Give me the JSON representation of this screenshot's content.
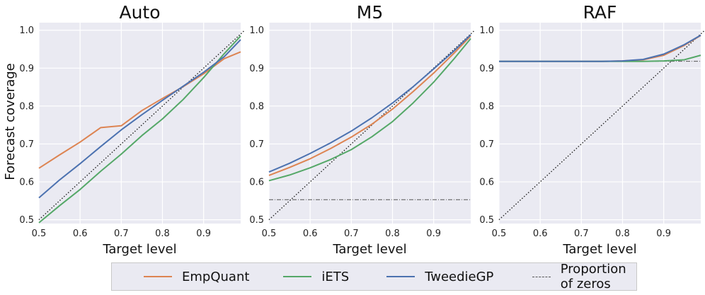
{
  "chart_data": {
    "type": "line",
    "ylabel": "Forecast coverage",
    "xlabel": "Target level",
    "xlim": [
      0.5,
      0.99
    ],
    "ylim": [
      0.49,
      1.02
    ],
    "xticks": [
      "0.5",
      "0.6",
      "0.7",
      "0.8",
      "0.9"
    ],
    "yticks": [
      "0.5",
      "0.6",
      "0.7",
      "0.8",
      "0.9",
      "1.0"
    ],
    "colors": {
      "EmpQuant": "#dd8452",
      "iETS": "#55a868",
      "TweedieGP": "#4c72b0",
      "Proportion of zeros": "#555555",
      "diagonal": "#222222"
    },
    "legend": [
      {
        "name": "EmpQuant",
        "style": "solid"
      },
      {
        "name": "iETS",
        "style": "solid"
      },
      {
        "name": "TweedieGP",
        "style": "solid"
      },
      {
        "name": "Proportion of zeros",
        "style": "dashdot"
      }
    ],
    "panels": [
      {
        "title": "Auto",
        "x": [
          0.5,
          0.55,
          0.6,
          0.65,
          0.7,
          0.75,
          0.8,
          0.85,
          0.9,
          0.95,
          0.99
        ],
        "series": [
          {
            "name": "EmpQuant",
            "values": [
              0.636,
              0.671,
              0.705,
              0.743,
              0.748,
              0.788,
              0.82,
              0.851,
              0.885,
              0.925,
              0.943
            ]
          },
          {
            "name": "iETS",
            "values": [
              0.492,
              0.537,
              0.58,
              0.628,
              0.673,
              0.722,
              0.766,
              0.817,
              0.875,
              0.938,
              0.985
            ]
          },
          {
            "name": "TweedieGP",
            "values": [
              0.558,
              0.605,
              0.648,
              0.693,
              0.737,
              0.777,
              0.815,
              0.852,
              0.889,
              0.93,
              0.975
            ]
          }
        ],
        "zero_proportion": null
      },
      {
        "title": "M5",
        "x": [
          0.5,
          0.55,
          0.6,
          0.65,
          0.7,
          0.75,
          0.8,
          0.85,
          0.9,
          0.95,
          0.99
        ],
        "series": [
          {
            "name": "EmpQuant",
            "values": [
              0.617,
              0.638,
              0.661,
              0.688,
              0.718,
              0.752,
              0.792,
              0.838,
              0.887,
              0.94,
              0.985
            ]
          },
          {
            "name": "iETS",
            "values": [
              0.603,
              0.618,
              0.637,
              0.659,
              0.685,
              0.719,
              0.759,
              0.808,
              0.863,
              0.925,
              0.978
            ]
          },
          {
            "name": "TweedieGP",
            "values": [
              0.626,
              0.649,
              0.675,
              0.703,
              0.734,
              0.769,
              0.808,
              0.851,
              0.898,
              0.946,
              0.988
            ]
          }
        ],
        "zero_proportion": 0.553
      },
      {
        "title": "RAF",
        "x": [
          0.5,
          0.55,
          0.6,
          0.65,
          0.7,
          0.75,
          0.8,
          0.85,
          0.9,
          0.95,
          0.99
        ],
        "series": [
          {
            "name": "EmpQuant",
            "values": [
              0.918,
              0.918,
              0.918,
              0.918,
              0.918,
              0.918,
              0.919,
              0.922,
              0.934,
              0.96,
              0.986
            ]
          },
          {
            "name": "iETS",
            "values": [
              0.918,
              0.918,
              0.918,
              0.918,
              0.918,
              0.918,
              0.918,
              0.918,
              0.919,
              0.922,
              0.934
            ]
          },
          {
            "name": "TweedieGP",
            "values": [
              0.918,
              0.918,
              0.918,
              0.918,
              0.918,
              0.918,
              0.919,
              0.923,
              0.937,
              0.962,
              0.987
            ]
          }
        ],
        "zero_proportion": 0.918
      }
    ]
  }
}
